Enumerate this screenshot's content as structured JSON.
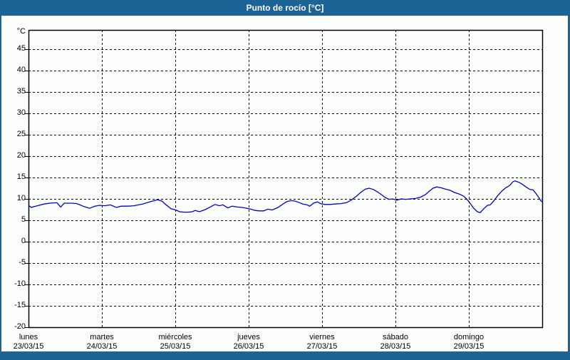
{
  "window": {
    "title": "Punto de rocío [°C]"
  },
  "colors": {
    "titlebar_bg": "#1c6496",
    "titlebar_text": "#ffffff",
    "panel_bg": "#fdfffd",
    "axis": "#000000",
    "grid": "#000000",
    "text": "#000000",
    "line": "#0000c8"
  },
  "chart_data": {
    "type": "line",
    "title": "Punto de rocío [°C]",
    "y_unit_label": "°C",
    "ylim": [
      -20,
      49.5
    ],
    "y_ticks": [
      45,
      40,
      35,
      30,
      25,
      20,
      15,
      10,
      5,
      0,
      -5,
      -10,
      -15,
      -20
    ],
    "grid": "dashed",
    "legend": "none",
    "x_range_hours": [
      0,
      168
    ],
    "x_labels": [
      {
        "day": "lunes",
        "date": "23/03/15"
      },
      {
        "day": "martes",
        "date": "24/03/15"
      },
      {
        "day": "miércoles",
        "date": "25/03/15"
      },
      {
        "day": "jueves",
        "date": "26/03/15"
      },
      {
        "day": "viernes",
        "date": "27/03/15"
      },
      {
        "day": "sábado",
        "date": "28/03/15"
      },
      {
        "day": "domingo",
        "date": "29/03/15"
      }
    ],
    "series": [
      {
        "name": "Punto de rocío",
        "color": "#0000c8",
        "points": [
          [
            0,
            8.5
          ],
          [
            0.9,
            8.0
          ],
          [
            1.9,
            8.2
          ],
          [
            3.5,
            8.5
          ],
          [
            5.1,
            8.8
          ],
          [
            7.0,
            9.0
          ],
          [
            9.3,
            9.1
          ],
          [
            10.5,
            8.1
          ],
          [
            11.7,
            9.0
          ],
          [
            14.0,
            9.0
          ],
          [
            15.8,
            8.9
          ],
          [
            18.2,
            8.2
          ],
          [
            20.0,
            7.8
          ],
          [
            21.7,
            8.3
          ],
          [
            23.3,
            8.5
          ],
          [
            24.9,
            8.4
          ],
          [
            26.8,
            8.6
          ],
          [
            28.7,
            8.0
          ],
          [
            30.3,
            8.3
          ],
          [
            32.6,
            8.3
          ],
          [
            34.5,
            8.4
          ],
          [
            37.3,
            8.8
          ],
          [
            40.1,
            9.4
          ],
          [
            42.2,
            9.8
          ],
          [
            43.6,
            9.5
          ],
          [
            44.7,
            8.8
          ],
          [
            46.6,
            7.7
          ],
          [
            48.2,
            7.4
          ],
          [
            49.4,
            7.0
          ],
          [
            50.8,
            6.9
          ],
          [
            52.2,
            6.9
          ],
          [
            53.6,
            7.0
          ],
          [
            54.5,
            7.3
          ],
          [
            55.9,
            7.0
          ],
          [
            57.8,
            7.5
          ],
          [
            59.4,
            8.1
          ],
          [
            61.0,
            8.7
          ],
          [
            62.4,
            8.4
          ],
          [
            63.6,
            8.6
          ],
          [
            65.2,
            7.9
          ],
          [
            66.6,
            8.3
          ],
          [
            68.3,
            8.1
          ],
          [
            69.9,
            8.0
          ],
          [
            71.5,
            7.8
          ],
          [
            72.7,
            7.6
          ],
          [
            74.1,
            7.3
          ],
          [
            75.5,
            7.2
          ],
          [
            76.9,
            7.2
          ],
          [
            78.3,
            7.6
          ],
          [
            79.7,
            7.4
          ],
          [
            81.6,
            8.0
          ],
          [
            83.2,
            8.8
          ],
          [
            84.6,
            9.4
          ],
          [
            86.0,
            9.6
          ],
          [
            87.1,
            9.5
          ],
          [
            88.3,
            9.2
          ],
          [
            89.7,
            8.8
          ],
          [
            91.1,
            8.6
          ],
          [
            92.0,
            8.3
          ],
          [
            93.2,
            9.0
          ],
          [
            94.4,
            9.3
          ],
          [
            95.5,
            8.9
          ],
          [
            96.9,
            8.7
          ],
          [
            98.6,
            8.7
          ],
          [
            100.2,
            8.8
          ],
          [
            102.1,
            8.9
          ],
          [
            103.9,
            9.1
          ],
          [
            105.5,
            9.7
          ],
          [
            107.2,
            10.6
          ],
          [
            108.8,
            11.6
          ],
          [
            110.2,
            12.3
          ],
          [
            111.4,
            12.5
          ],
          [
            112.8,
            12.2
          ],
          [
            114.2,
            11.6
          ],
          [
            115.6,
            10.9
          ],
          [
            116.7,
            10.3
          ],
          [
            117.9,
            9.9
          ],
          [
            119.1,
            10.0
          ],
          [
            120.5,
            9.7
          ],
          [
            121.9,
            10.0
          ],
          [
            123.3,
            9.9
          ],
          [
            124.9,
            10.0
          ],
          [
            126.5,
            10.1
          ],
          [
            128.2,
            10.4
          ],
          [
            129.8,
            11.0
          ],
          [
            131.2,
            11.9
          ],
          [
            132.3,
            12.5
          ],
          [
            133.5,
            12.8
          ],
          [
            134.9,
            12.6
          ],
          [
            136.3,
            12.3
          ],
          [
            137.9,
            12.0
          ],
          [
            139.3,
            11.5
          ],
          [
            141.0,
            11.1
          ],
          [
            142.4,
            10.6
          ],
          [
            143.5,
            9.8
          ],
          [
            144.5,
            8.9
          ],
          [
            145.6,
            7.8
          ],
          [
            146.8,
            7.0
          ],
          [
            147.7,
            6.8
          ],
          [
            148.9,
            7.7
          ],
          [
            150.1,
            8.5
          ],
          [
            151.0,
            8.6
          ],
          [
            152.2,
            9.6
          ],
          [
            153.5,
            10.8
          ],
          [
            154.9,
            11.9
          ],
          [
            156.1,
            12.6
          ],
          [
            157.3,
            13.1
          ],
          [
            158.4,
            14.0
          ],
          [
            159.1,
            14.2
          ],
          [
            160.3,
            13.9
          ],
          [
            161.5,
            13.4
          ],
          [
            162.9,
            12.7
          ],
          [
            164.0,
            12.2
          ],
          [
            165.0,
            12.1
          ],
          [
            165.9,
            11.3
          ],
          [
            166.8,
            10.4
          ],
          [
            167.5,
            9.6
          ],
          [
            168.0,
            9.3
          ]
        ]
      }
    ]
  }
}
